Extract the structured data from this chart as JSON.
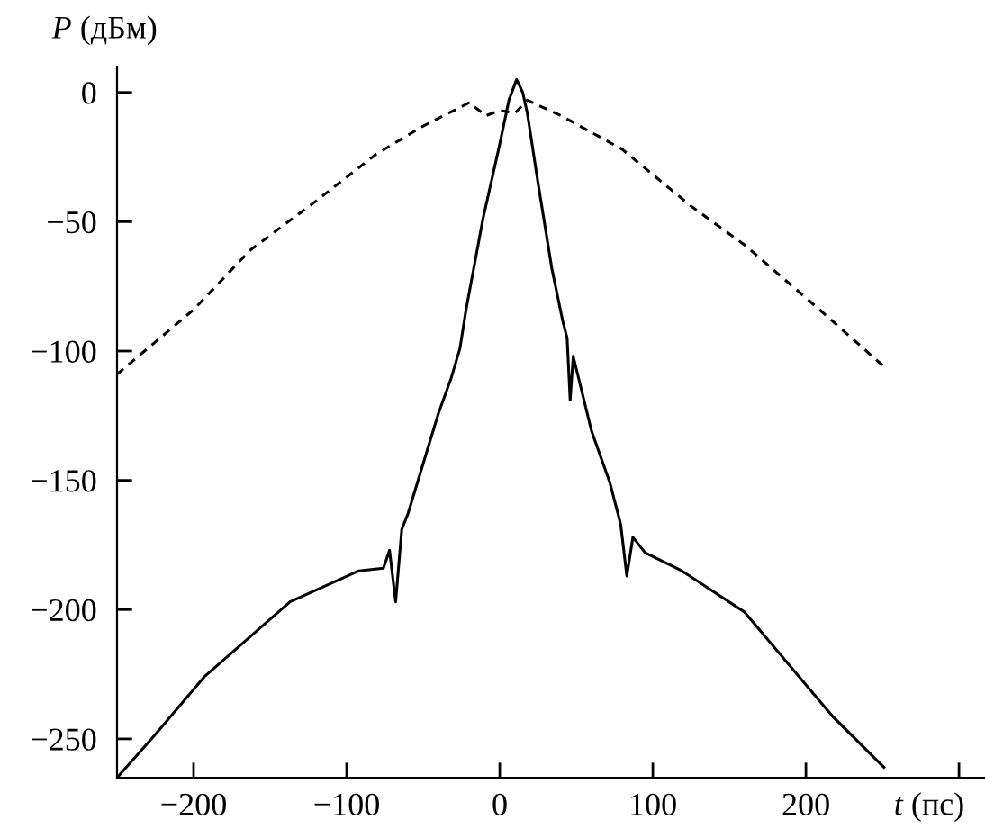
{
  "chart_data": {
    "type": "line",
    "xlabel": "t (пс)",
    "ylabel": "P (дБм)",
    "xlim": [
      -250,
      317
    ],
    "ylim": [
      -265,
      10
    ],
    "xticks": [
      -200,
      -100,
      0,
      100,
      200,
      {
        "value": 300,
        "label": null
      }
    ],
    "yticks": [
      -250,
      -200,
      -150,
      -100,
      -50,
      0
    ],
    "grid": false,
    "legend": false,
    "marker": "none",
    "series": [
      {
        "color": "#000000",
        "line_style": "solid",
        "x": [
          -250,
          -226,
          -193,
          -137,
          -92,
          -76,
          -72,
          -68,
          -64,
          -60,
          -40,
          -32,
          -26,
          -22,
          -11,
          0,
          6,
          11,
          15,
          18,
          25,
          34,
          41,
          44,
          46,
          48,
          60,
          72,
          79,
          83,
          87,
          95,
          119,
          160,
          217,
          251
        ],
        "values": [
          -265,
          -249,
          -226,
          -197,
          -185,
          -184,
          -177,
          -197,
          -169,
          -163,
          -124,
          -111,
          -99,
          -84,
          -49,
          -20,
          -3,
          5,
          0,
          -8,
          -35,
          -68,
          -88,
          -95,
          -119,
          -102,
          -131,
          -151,
          -167,
          -187,
          -172,
          -178,
          -185,
          -201,
          -241,
          -261
        ]
      },
      {
        "color": "#000000",
        "line_style": "dashed",
        "x": [
          -250,
          -200,
          -163,
          -120,
          -81,
          -50,
          -20,
          -9,
          0,
          10,
          18,
          40,
          80,
          125,
          160,
          207,
          251
        ],
        "values": [
          -109,
          -84,
          -61,
          -42,
          -24,
          -13,
          -4,
          -9,
          -7,
          -8,
          -3,
          -9,
          -22,
          -44,
          -59,
          -83,
          -106
        ]
      }
    ]
  }
}
